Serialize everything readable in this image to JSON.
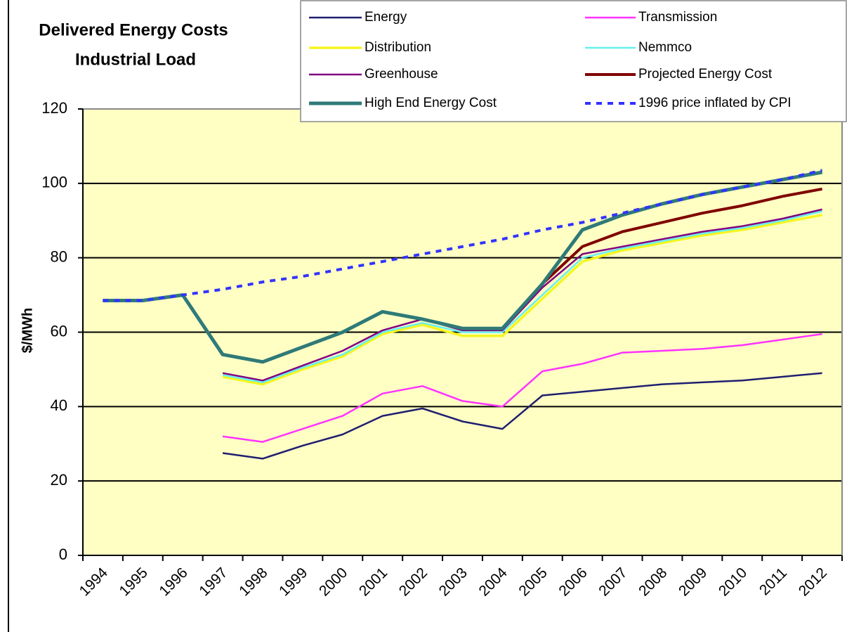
{
  "chart_data": {
    "type": "line",
    "title": [
      "Delivered Energy Costs",
      "Industrial Load"
    ],
    "y_label": "$/MWh",
    "categories": [
      "1994",
      "1995",
      "1996",
      "1997",
      "1998",
      "1999",
      "2000",
      "2001",
      "2002",
      "2003",
      "2004",
      "2005",
      "2006",
      "2007",
      "2008",
      "2009",
      "2010",
      "2011",
      "2012"
    ],
    "ylim": [
      0,
      120
    ],
    "yticks": [
      0,
      20,
      40,
      60,
      80,
      100,
      120
    ],
    "grid": true,
    "legend": "top-right",
    "series": [
      {
        "name": "Energy",
        "color": "#1f1f70",
        "values": [
          null,
          null,
          null,
          27.5,
          26,
          29.5,
          32.5,
          37.5,
          39.5,
          36,
          34,
          43,
          44,
          45,
          46,
          46.5,
          47,
          48,
          49
        ]
      },
      {
        "name": "Transmission",
        "color": "#ff33ff",
        "values": [
          null,
          null,
          null,
          32,
          30.5,
          34,
          37.5,
          43.5,
          45.5,
          41.5,
          40,
          49.5,
          51.5,
          54.5,
          55,
          55.5,
          56.5,
          58,
          59.5
        ]
      },
      {
        "name": "Distribution",
        "color": "#f5f520",
        "values": [
          null,
          null,
          null,
          48,
          46,
          50,
          53.5,
          59.5,
          62,
          59,
          59,
          69,
          79,
          82,
          84,
          86,
          87.5,
          89.5,
          91.5
        ]
      },
      {
        "name": "Nemmco",
        "color": "#66f0f0",
        "values": [
          null,
          null,
          null,
          48.5,
          46.5,
          50.5,
          54,
          60,
          62.5,
          60,
          60,
          70,
          80,
          82.5,
          84.5,
          86.5,
          88,
          90,
          92.5
        ]
      },
      {
        "name": "Greenhouse",
        "color": "#800080",
        "values": [
          null,
          null,
          null,
          49,
          47,
          51,
          55,
          60.5,
          63.5,
          60.5,
          60.5,
          72,
          81,
          83,
          85,
          87,
          88.5,
          90.5,
          93
        ]
      },
      {
        "name": "Projected Energy Cost",
        "color": "#800000",
        "values": [
          68.5,
          68.5,
          70,
          54,
          52,
          56,
          60,
          65.5,
          63.5,
          61,
          61,
          73,
          83,
          87,
          89.5,
          92,
          94,
          96.5,
          98.5
        ]
      },
      {
        "name": "High End Energy Cost",
        "color": "#2f7a78",
        "values": [
          68.5,
          68.5,
          70,
          54,
          52,
          56,
          60,
          65.5,
          63.5,
          61,
          61,
          73,
          87.5,
          91.5,
          94.5,
          97,
          99,
          101,
          103
        ]
      },
      {
        "name": "1996 price inflated by CPI",
        "color": "#3333ff",
        "dashed": true,
        "values": [
          68.5,
          68.5,
          70,
          71.5,
          73.5,
          75,
          77,
          79,
          81,
          83,
          85,
          87.5,
          89.5,
          92,
          94.5,
          97,
          99,
          101,
          103.5
        ]
      }
    ]
  }
}
